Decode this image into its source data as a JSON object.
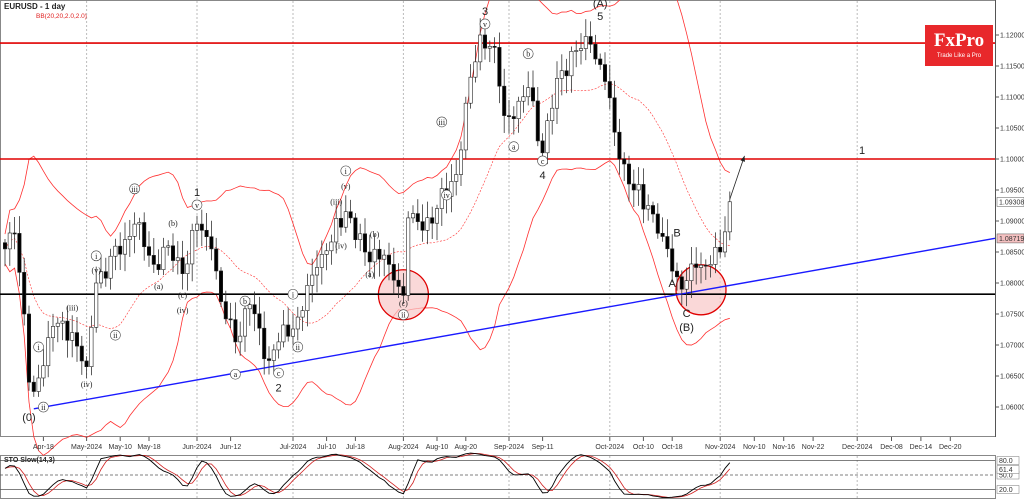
{
  "header": {
    "symbol_title": "EURUSD - 1 day",
    "indicator": "BB(20,20,2.0,2.0)"
  },
  "logo": {
    "brand": "FxPro",
    "tagline": "Trade Like a Pro",
    "color": "#e8282b"
  },
  "chart_data": {
    "type": "candlestick",
    "title": "EURUSD - 1 day",
    "indicators": [
      "BB(20,20,2.0,2.0)",
      "STO Slow(14,3)"
    ],
    "ylim": [
      1.0552,
      1.1265
    ],
    "price_ticks": [
      "1.12000",
      "1.11500",
      "1.11000",
      "1.10500",
      "1.10000",
      "1.09500",
      "1.09000",
      "1.08500",
      "1.08000",
      "1.07500",
      "1.07000",
      "1.06500",
      "1.06000"
    ],
    "last_price_label": "1.09308",
    "trendline_price_label": "1.08719",
    "key_closes": [
      [
        "2024-04-08",
        1.0855
      ],
      [
        "2024-04-10",
        1.088
      ],
      [
        "2024-04-12",
        1.075
      ],
      [
        "2024-04-15",
        1.064
      ],
      [
        "2024-04-16",
        1.0625
      ],
      [
        "2024-04-22",
        1.073
      ],
      [
        "2024-04-26",
        1.072
      ],
      [
        "2024-05-01",
        1.0665
      ],
      [
        "2024-05-03",
        1.08
      ],
      [
        "2024-05-13",
        1.087
      ],
      [
        "2024-05-15",
        1.0895
      ],
      [
        "2024-05-21",
        1.083
      ],
      [
        "2024-05-24",
        1.086
      ],
      [
        "2024-05-29",
        1.0815
      ],
      [
        "2024-06-03",
        1.0895
      ],
      [
        "2024-06-06",
        1.0855
      ],
      [
        "2024-06-10",
        1.077
      ],
      [
        "2024-06-13",
        1.0705
      ],
      [
        "2024-06-18",
        1.0765
      ],
      [
        "2024-06-24",
        1.0675
      ],
      [
        "2024-06-26",
        1.0705
      ],
      [
        "2024-07-02",
        1.0745
      ],
      [
        "2024-07-08",
        1.0825
      ],
      [
        "2024-07-16",
        1.0915
      ],
      [
        "2024-07-22",
        1.085
      ],
      [
        "2024-07-26",
        1.0845
      ],
      [
        "2024-07-29",
        1.083
      ],
      [
        "2024-08-01",
        1.078
      ],
      [
        "2024-08-02",
        1.0905
      ],
      [
        "2024-08-07",
        1.0885
      ],
      [
        "2024-08-12",
        1.092
      ],
      [
        "2024-08-16",
        1.0975
      ],
      [
        "2024-08-20",
        1.109
      ],
      [
        "2024-08-23",
        1.12
      ],
      [
        "2024-08-28",
        1.118
      ],
      [
        "2024-08-30",
        1.107
      ],
      [
        "2024-09-03",
        1.1065
      ],
      [
        "2024-09-06",
        1.1115
      ],
      [
        "2024-09-11",
        1.101
      ],
      [
        "2024-09-16",
        1.113
      ],
      [
        "2024-09-20",
        1.1175
      ],
      [
        "2024-09-25",
        1.1185
      ],
      [
        "2024-09-30",
        1.1125
      ],
      [
        "2024-10-03",
        1.1
      ],
      [
        "2024-10-08",
        1.095
      ],
      [
        "2024-10-11",
        1.0925
      ],
      [
        "2024-10-16",
        1.0875
      ],
      [
        "2024-10-21",
        1.081
      ],
      [
        "2024-10-22",
        1.079
      ],
      [
        "2024-10-25",
        1.0825
      ],
      [
        "2024-10-30",
        1.083
      ],
      [
        "2024-11-01",
        1.085
      ],
      [
        "2024-11-05",
        1.0931
      ]
    ],
    "horizontal_lines": [
      {
        "price": 1.1187,
        "color": "#e00000"
      },
      {
        "price": 1.1,
        "color": "#e00000"
      },
      {
        "price": 1.0782,
        "color": "#000000"
      }
    ],
    "trendline": {
      "from": {
        "date": "2024-04-16",
        "price": 1.0597
      },
      "to": {
        "date": "2024-12-29",
        "price": 1.0872
      },
      "color": "#1a1aff"
    },
    "projection_arrow": {
      "from": {
        "date": "2024-11-05",
        "price": 1.0935
      },
      "to": {
        "date": "2024-11-08",
        "price": 1.1005
      }
    },
    "highlight_circles": [
      {
        "date": "2024-08-01",
        "price": 1.0781
      },
      {
        "date": "2024-10-28",
        "price": 1.0789
      }
    ],
    "wave_labels": [
      {
        "text": "(0)",
        "style": "big",
        "date": "2024-04-15",
        "price": 1.0579
      },
      {
        "text": "ii",
        "style": "circle",
        "date": "2024-04-18",
        "price": 1.0595
      },
      {
        "text": "i",
        "style": "circle",
        "date": "2024-04-17",
        "price": 1.0692
      },
      {
        "text": "(iii)",
        "style": "plain",
        "date": "2024-04-26",
        "price": 1.0756
      },
      {
        "text": "(iv)",
        "style": "plain",
        "date": "2024-05-01",
        "price": 1.0632
      },
      {
        "text": "i",
        "style": "circle",
        "date": "2024-05-03",
        "price": 1.0839
      },
      {
        "text": "(v)",
        "style": "plain",
        "date": "2024-05-03",
        "price": 1.0816
      },
      {
        "text": "ii",
        "style": "circle",
        "date": "2024-05-09",
        "price": 1.0711
      },
      {
        "text": "iii",
        "style": "circle",
        "date": "2024-05-15",
        "price": 1.0947
      },
      {
        "text": "(b)",
        "style": "plain",
        "date": "2024-05-27",
        "price": 1.0892
      },
      {
        "text": "(a)",
        "style": "plain",
        "date": "2024-05-22",
        "price": 1.079
      },
      {
        "text": "(c)",
        "style": "plain",
        "date": "2024-05-29",
        "price": 1.0776
      },
      {
        "text": "(iv)",
        "style": "plain",
        "date": "2024-05-29",
        "price": 1.0752
      },
      {
        "text": "1",
        "style": "big",
        "date": "2024-06-03",
        "price": 1.0942
      },
      {
        "text": "v",
        "style": "circle",
        "date": "2024-06-03",
        "price": 1.0921
      },
      {
        "text": "b",
        "style": "circle",
        "date": "2024-06-17",
        "price": 1.0766
      },
      {
        "text": "a",
        "style": "circle",
        "date": "2024-06-13",
        "price": 1.0648
      },
      {
        "text": "c",
        "style": "circle",
        "date": "2024-06-26",
        "price": 1.065
      },
      {
        "text": "2",
        "style": "big",
        "date": "2024-06-26",
        "price": 1.0627
      },
      {
        "text": "i",
        "style": "circle",
        "date": "2024-07-01",
        "price": 1.0777
      },
      {
        "text": "ii",
        "style": "circle",
        "date": "2024-07-02",
        "price": 1.0692
      },
      {
        "text": "(iii)",
        "style": "plain",
        "date": "2024-07-12",
        "price": 1.0927
      },
      {
        "text": "(iv)",
        "style": "plain",
        "date": "2024-07-15",
        "price": 1.0856
      },
      {
        "text": "i",
        "style": "circle",
        "date": "2024-07-16",
        "price": 1.0976
      },
      {
        "text": "(v)",
        "style": "plain",
        "date": "2024-07-16",
        "price": 1.0952
      },
      {
        "text": "(b)",
        "style": "plain",
        "date": "2024-07-24",
        "price": 1.0874
      },
      {
        "text": "(a)",
        "style": "plain",
        "date": "2024-07-23",
        "price": 1.081
      },
      {
        "text": "(c)",
        "style": "plain",
        "date": "2024-08-01",
        "price": 1.0763
      },
      {
        "text": "ii",
        "style": "circle",
        "date": "2024-08-01",
        "price": 1.0744
      },
      {
        "text": "iii",
        "style": "circle",
        "date": "2024-08-13",
        "price": 1.1055
      },
      {
        "text": "iv",
        "style": "circle",
        "date": "2024-08-14",
        "price": 1.0937
      },
      {
        "text": "3",
        "style": "big",
        "date": "2024-08-26",
        "price": 1.1234
      },
      {
        "text": "v",
        "style": "circle",
        "date": "2024-08-26",
        "price": 1.1213
      },
      {
        "text": "b",
        "style": "circle",
        "date": "2024-09-06",
        "price": 1.1165
      },
      {
        "text": "a",
        "style": "circle",
        "date": "2024-09-03",
        "price": 1.1015
      },
      {
        "text": "c",
        "style": "circle",
        "date": "2024-09-11",
        "price": 1.0992
      },
      {
        "text": "4",
        "style": "big",
        "date": "2024-09-11",
        "price": 1.0969
      },
      {
        "text": "(A)",
        "style": "big",
        "date": "2024-09-27",
        "price": 1.1247
      },
      {
        "text": "5",
        "style": "big",
        "date": "2024-09-27",
        "price": 1.1226
      },
      {
        "text": "B",
        "style": "big",
        "date": "2024-10-21",
        "price": 1.0877
      },
      {
        "text": "A",
        "style": "big",
        "date": "2024-10-18",
        "price": 1.0795
      },
      {
        "text": "C",
        "style": "big",
        "date": "2024-10-23",
        "price": 1.0747
      },
      {
        "text": "(B)",
        "style": "big",
        "date": "2024-10-23",
        "price": 1.0724
      },
      {
        "text": "1",
        "style": "big",
        "date": "2024-12-02",
        "price": 1.101
      }
    ],
    "date_ticks": [
      {
        "label": "Apr-18",
        "date": "2024-04-18"
      },
      {
        "label": "May-2024",
        "date": "2024-05-01",
        "month": true
      },
      {
        "label": "May-10",
        "date": "2024-05-10"
      },
      {
        "label": "May-18",
        "date": "2024-05-20"
      },
      {
        "label": "Jun-2024",
        "date": "2024-06-03",
        "month": true
      },
      {
        "label": "Jun-12",
        "date": "2024-06-12"
      },
      {
        "label": "Jul-2024",
        "date": "2024-07-01",
        "month": true
      },
      {
        "label": "Jul-10",
        "date": "2024-07-10"
      },
      {
        "label": "Jul-18",
        "date": "2024-07-18"
      },
      {
        "label": "Aug-2024",
        "date": "2024-08-01",
        "month": true
      },
      {
        "label": "Aug-10",
        "date": "2024-08-12"
      },
      {
        "label": "Aug-20",
        "date": "2024-08-20"
      },
      {
        "label": "Sep-2024",
        "date": "2024-09-02",
        "month": true
      },
      {
        "label": "Sep-11",
        "date": "2024-09-11"
      },
      {
        "label": "Oct-2024",
        "date": "2024-10-01",
        "month": true
      },
      {
        "label": "Oct-10",
        "date": "2024-10-10"
      },
      {
        "label": "Oct-18",
        "date": "2024-10-18"
      },
      {
        "label": "Nov-2024",
        "date": "2024-11-01",
        "month": true
      },
      {
        "label": "Nov-10",
        "date": "2024-11-10"
      },
      {
        "label": "Nov-16",
        "date": "2024-11-16"
      },
      {
        "label": "Nov-22",
        "date": "2024-11-22"
      },
      {
        "label": "Dec-2024",
        "date": "2024-12-01",
        "month": true
      },
      {
        "label": "Dec-08",
        "date": "2024-12-08"
      },
      {
        "label": "Dec-14",
        "date": "2024-12-14"
      },
      {
        "label": "Dec-20",
        "date": "2024-12-20"
      }
    ],
    "stochastic": {
      "title": "STO Slow(14,3)",
      "levels": [
        80,
        50,
        20
      ],
      "level_labels": [
        "80.0",
        "50.0",
        "20.0"
      ],
      "current_label": "61.4",
      "k_color": "#000000",
      "d_color": "#d02020"
    },
    "colors": {
      "bollinger": "#ff3030",
      "bull_body": "#ffffff",
      "bear_body": "#000000",
      "circle_fill": "#f8c8c8"
    }
  }
}
